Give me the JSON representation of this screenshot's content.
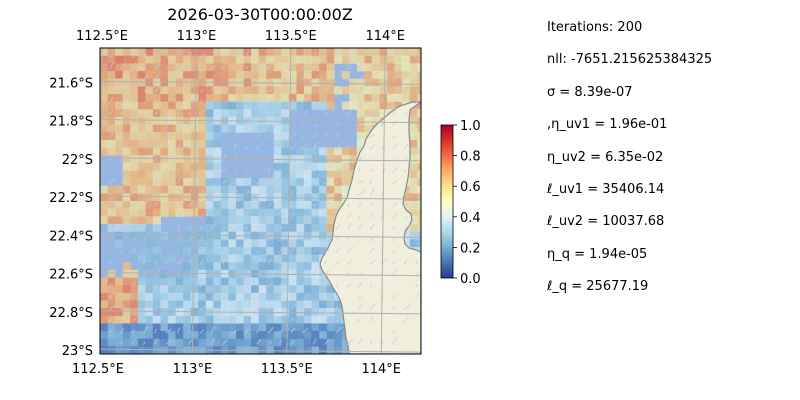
{
  "chart_data": {
    "type": "heatmap",
    "title": "2026-03-30T00:00:00Z",
    "xlabel": "",
    "ylabel": "",
    "x_range": [
      112.5,
      114.2
    ],
    "y_range": [
      -23.02,
      -21.42
    ],
    "x_ticks": [
      {
        "value": 112.5,
        "label": "112.5°E"
      },
      {
        "value": 113.0,
        "label": "113°E"
      },
      {
        "value": 113.5,
        "label": "113.5°E"
      },
      {
        "value": 114.0,
        "label": "114°E"
      }
    ],
    "y_ticks": [
      {
        "value": -21.6,
        "label": "21.6°S"
      },
      {
        "value": -21.8,
        "label": "21.8°S"
      },
      {
        "value": -22.0,
        "label": "22°S"
      },
      {
        "value": -22.2,
        "label": "22.2°S"
      },
      {
        "value": -22.4,
        "label": "22.4°S"
      },
      {
        "value": -22.6,
        "label": "22.6°S"
      },
      {
        "value": -22.8,
        "label": "22.8°S"
      },
      {
        "value": -23.0,
        "label": "23°S"
      }
    ],
    "grid": true,
    "colorbar": {
      "range": [
        0.0,
        1.0
      ],
      "colormap": "RdYlBu_r",
      "ticks": [
        {
          "value": 0.0,
          "label": "0.0"
        },
        {
          "value": 0.2,
          "label": "0.2"
        },
        {
          "value": 0.4,
          "label": "0.4"
        },
        {
          "value": 0.6,
          "label": "0.6"
        },
        {
          "value": 0.8,
          "label": "0.8"
        },
        {
          "value": 1.0,
          "label": "1.0"
        }
      ]
    },
    "background_color": "#97b6e1",
    "land_color": "#efefdb",
    "coastline_color": "#888888",
    "heatmap_alpha": 0.7,
    "vector_field": "current velocity arrows (u, v)",
    "grid_cells_approx": {
      "lon_step": 0.04,
      "lat_step": 0.04
    }
  },
  "stats": [
    {
      "label": "Iterations: 200"
    },
    {
      "label": "nll: -7651.215625384325"
    },
    {
      "label": "σ = 8.39e-07"
    },
    {
      "label": ",η_uv1 = 1.96e-01"
    },
    {
      "label": "η_uv2 = 6.35e-02"
    },
    {
      "label": "ℓ_uv1 = 35406.14"
    },
    {
      "label": "ℓ_uv2 = 10037.68"
    },
    {
      "label": "η_q = 1.94e-05"
    },
    {
      "label": "ℓ_q = 25677.19"
    }
  ]
}
